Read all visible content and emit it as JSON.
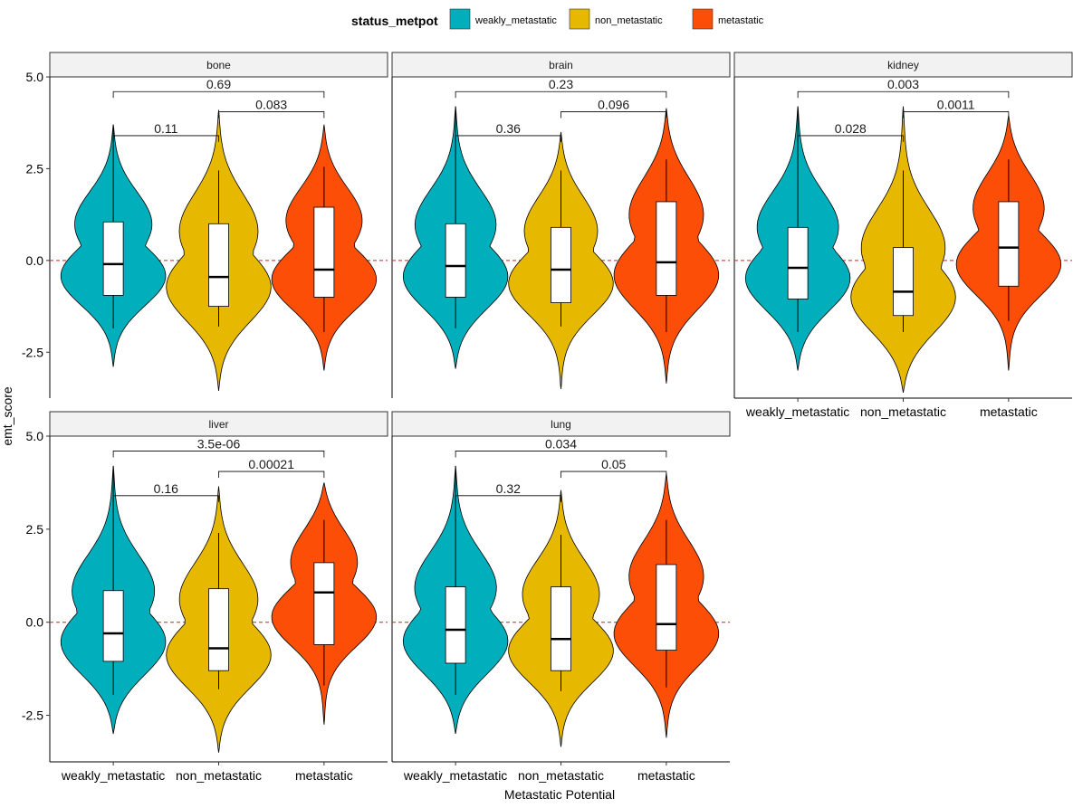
{
  "chart_data": {
    "type": "violin",
    "xlabel": "Metastatic Potential",
    "ylabel": "emt_score",
    "ylim": [
      -3.75,
      5.0
    ],
    "yticks": [
      5.0,
      2.5,
      0.0,
      -2.5
    ],
    "ytick_labels": [
      "5.0",
      "2.5",
      "0.0",
      "-2.5"
    ],
    "reference_line": {
      "y": 0,
      "style": "dashed",
      "color": "#e41a1c"
    },
    "categories": [
      "weakly_metastatic",
      "non_metastatic",
      "metastatic"
    ],
    "legend": {
      "title": "status_metpot",
      "position": "top",
      "entries": [
        {
          "label": "weakly_metastatic",
          "color": "#00AFBB"
        },
        {
          "label": "non_metastatic",
          "color": "#E7B800"
        },
        {
          "label": "metastatic",
          "color": "#FC4E07"
        }
      ]
    },
    "panels": [
      {
        "facet": "bone",
        "groups": [
          {
            "category": "weakly_metastatic",
            "min": -2.9,
            "max": 3.7,
            "q1": -0.95,
            "median": -0.1,
            "q3": 1.05,
            "whisker_low": -1.85,
            "whisker_high": 3.7
          },
          {
            "category": "non_metastatic",
            "min": -3.55,
            "max": 4.1,
            "q1": -1.25,
            "median": -0.45,
            "q3": 1.0,
            "whisker_low": -1.8,
            "whisker_high": 2.45
          },
          {
            "category": "metastatic",
            "min": -3.0,
            "max": 3.7,
            "q1": -1.0,
            "median": -0.25,
            "q3": 1.45,
            "whisker_low": -1.95,
            "whisker_high": 2.55
          }
        ],
        "comparisons": [
          {
            "groups": [
              1,
              2
            ],
            "p": "0.11"
          },
          {
            "groups": [
              2,
              3
            ],
            "p": "0.083"
          },
          {
            "groups": [
              1,
              3
            ],
            "p": "0.69"
          }
        ]
      },
      {
        "facet": "brain",
        "groups": [
          {
            "category": "weakly_metastatic",
            "min": -2.95,
            "max": 4.2,
            "q1": -1.0,
            "median": -0.15,
            "q3": 1.0,
            "whisker_low": -1.85,
            "whisker_high": 4.2
          },
          {
            "category": "non_metastatic",
            "min": -3.5,
            "max": 3.5,
            "q1": -1.15,
            "median": -0.25,
            "q3": 0.9,
            "whisker_low": -1.8,
            "whisker_high": 2.45
          },
          {
            "category": "metastatic",
            "min": -3.35,
            "max": 4.15,
            "q1": -0.95,
            "median": -0.05,
            "q3": 1.6,
            "whisker_low": -1.95,
            "whisker_high": 2.75
          }
        ],
        "comparisons": [
          {
            "groups": [
              1,
              2
            ],
            "p": "0.36"
          },
          {
            "groups": [
              2,
              3
            ],
            "p": "0.096"
          },
          {
            "groups": [
              1,
              3
            ],
            "p": "0.23"
          }
        ]
      },
      {
        "facet": "kidney",
        "groups": [
          {
            "category": "weakly_metastatic",
            "min": -3.0,
            "max": 4.2,
            "q1": -1.05,
            "median": -0.2,
            "q3": 0.9,
            "whisker_low": -1.95,
            "whisker_high": 4.2
          },
          {
            "category": "non_metastatic",
            "min": -3.6,
            "max": 4.2,
            "q1": -1.5,
            "median": -0.85,
            "q3": 0.35,
            "whisker_low": -1.95,
            "whisker_high": 2.45
          },
          {
            "category": "metastatic",
            "min": -3.0,
            "max": 3.95,
            "q1": -0.7,
            "median": 0.35,
            "q3": 1.6,
            "whisker_low": -1.65,
            "whisker_high": 2.75
          }
        ],
        "comparisons": [
          {
            "groups": [
              1,
              2
            ],
            "p": "0.028"
          },
          {
            "groups": [
              2,
              3
            ],
            "p": "0.0011"
          },
          {
            "groups": [
              1,
              3
            ],
            "p": "0.003"
          }
        ]
      },
      {
        "facet": "liver",
        "groups": [
          {
            "category": "weakly_metastatic",
            "min": -3.0,
            "max": 4.2,
            "q1": -1.05,
            "median": -0.3,
            "q3": 0.85,
            "whisker_low": -1.95,
            "whisker_high": 4.2
          },
          {
            "category": "non_metastatic",
            "min": -3.5,
            "max": 3.65,
            "q1": -1.3,
            "median": -0.7,
            "q3": 0.9,
            "whisker_low": -1.8,
            "whisker_high": 2.4
          },
          {
            "category": "metastatic",
            "min": -2.75,
            "max": 3.75,
            "q1": -0.6,
            "median": 0.8,
            "q3": 1.6,
            "whisker_low": -1.7,
            "whisker_high": 2.75
          }
        ],
        "comparisons": [
          {
            "groups": [
              1,
              2
            ],
            "p": "0.16"
          },
          {
            "groups": [
              2,
              3
            ],
            "p": "0.00021"
          },
          {
            "groups": [
              1,
              3
            ],
            "p": "3.5e-06"
          }
        ]
      },
      {
        "facet": "lung",
        "groups": [
          {
            "category": "weakly_metastatic",
            "min": -3.0,
            "max": 4.2,
            "q1": -1.1,
            "median": -0.2,
            "q3": 0.95,
            "whisker_low": -1.95,
            "whisker_high": 4.2
          },
          {
            "category": "non_metastatic",
            "min": -3.35,
            "max": 3.55,
            "q1": -1.3,
            "median": -0.45,
            "q3": 0.95,
            "whisker_low": -1.85,
            "whisker_high": 2.35
          },
          {
            "category": "metastatic",
            "min": -3.1,
            "max": 4.0,
            "q1": -0.75,
            "median": -0.05,
            "q3": 1.55,
            "whisker_low": -1.75,
            "whisker_high": 2.75
          }
        ],
        "comparisons": [
          {
            "groups": [
              1,
              2
            ],
            "p": "0.32"
          },
          {
            "groups": [
              2,
              3
            ],
            "p": "0.05"
          },
          {
            "groups": [
              1,
              3
            ],
            "p": "0.034"
          }
        ]
      }
    ]
  }
}
